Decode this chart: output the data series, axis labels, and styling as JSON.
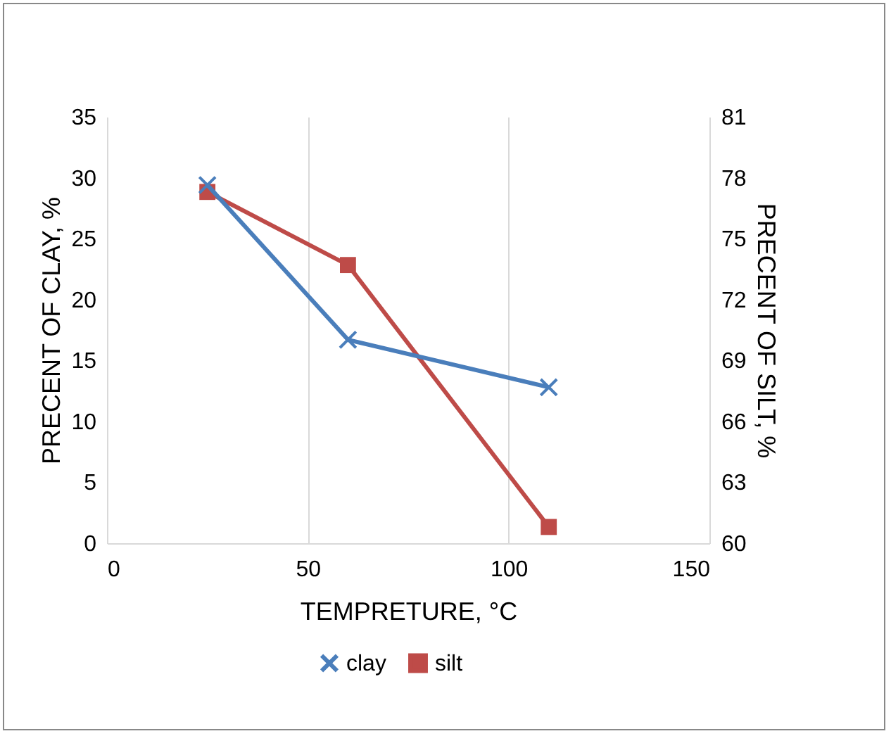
{
  "chart_data": {
    "type": "line",
    "xlabel": "TEMPRETURE, °C",
    "ylabel": "PRECENT OF CLAY, %",
    "y2label": "PRECENT OF SILT, %",
    "xlim": [
      0,
      150
    ],
    "xticks": [
      0,
      50,
      100,
      150
    ],
    "ylim": [
      0,
      35
    ],
    "yticks": [
      0,
      5,
      10,
      15,
      20,
      25,
      30,
      35
    ],
    "y2lim": [
      60,
      81
    ],
    "y2ticks": [
      60,
      63,
      66,
      69,
      72,
      75,
      78,
      81
    ],
    "grid": "x",
    "legend": "bottom",
    "series": [
      {
        "name": "clay",
        "color": "#4a7ebb",
        "marker": "cross",
        "x": [
          25,
          60,
          110
        ],
        "values": [
          29.4,
          16.7,
          12.8
        ]
      },
      {
        "name": "silt",
        "color": "#be4b48",
        "marker": "square",
        "axis": "y2",
        "x": [
          25,
          60,
          110
        ],
        "values": [
          77.3,
          73.7,
          60.8
        ]
      }
    ]
  }
}
